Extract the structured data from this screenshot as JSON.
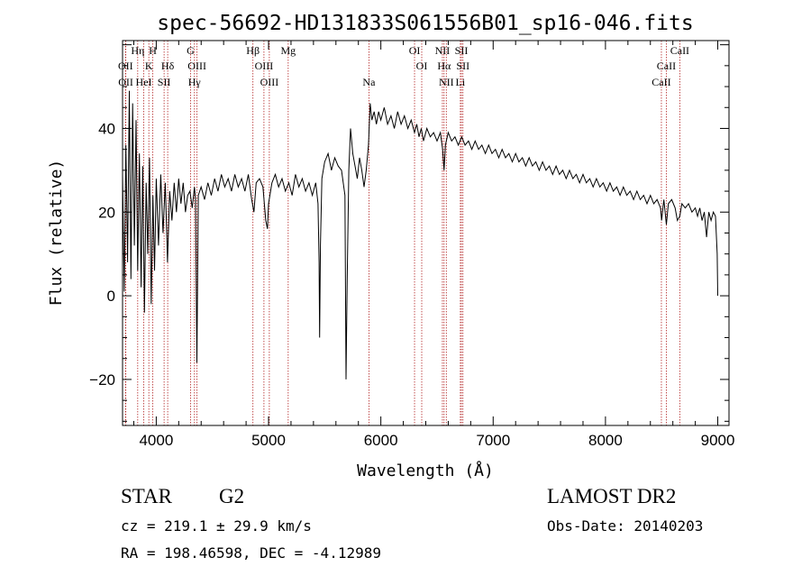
{
  "chart_data": {
    "type": "line",
    "title": "spec-56692-HD131833S061556B01_sp16-046.fits",
    "xlabel": "Wavelength (Å)",
    "ylabel": "Flux (relative)",
    "xlim": [
      3700,
      9100
    ],
    "ylim": [
      -31,
      61
    ],
    "xticks": [
      4000,
      5000,
      6000,
      7000,
      8000,
      9000
    ],
    "yticks": [
      -20,
      0,
      20,
      40
    ],
    "grid": false,
    "series": [
      {
        "values": [
          [
            3700,
            29
          ],
          [
            3715,
            1
          ],
          [
            3730,
            36
          ],
          [
            3745,
            8
          ],
          [
            3760,
            49
          ],
          [
            3775,
            4
          ],
          [
            3790,
            46
          ],
          [
            3805,
            12
          ],
          [
            3820,
            42
          ],
          [
            3835,
            6
          ],
          [
            3850,
            34
          ],
          [
            3865,
            2
          ],
          [
            3880,
            31
          ],
          [
            3895,
            -4
          ],
          [
            3910,
            27
          ],
          [
            3925,
            10
          ],
          [
            3940,
            33
          ],
          [
            3955,
            -2
          ],
          [
            3970,
            24
          ],
          [
            3985,
            6
          ],
          [
            4000,
            28
          ],
          [
            4020,
            12
          ],
          [
            4040,
            29
          ],
          [
            4060,
            15
          ],
          [
            4080,
            27
          ],
          [
            4100,
            8
          ],
          [
            4120,
            25
          ],
          [
            4140,
            18
          ],
          [
            4160,
            27
          ],
          [
            4180,
            20
          ],
          [
            4200,
            28
          ],
          [
            4220,
            22
          ],
          [
            4240,
            27
          ],
          [
            4260,
            20
          ],
          [
            4280,
            24
          ],
          [
            4300,
            25
          ],
          [
            4320,
            21
          ],
          [
            4340,
            26
          ],
          [
            4350,
            23
          ],
          [
            4362,
            -16
          ],
          [
            4375,
            24
          ],
          [
            4400,
            26
          ],
          [
            4430,
            23
          ],
          [
            4460,
            27
          ],
          [
            4490,
            24
          ],
          [
            4520,
            28
          ],
          [
            4550,
            25
          ],
          [
            4580,
            29
          ],
          [
            4610,
            26
          ],
          [
            4640,
            28
          ],
          [
            4670,
            25
          ],
          [
            4700,
            29
          ],
          [
            4730,
            26
          ],
          [
            4760,
            28
          ],
          [
            4790,
            25
          ],
          [
            4820,
            29
          ],
          [
            4850,
            23
          ],
          [
            4870,
            20
          ],
          [
            4890,
            27
          ],
          [
            4920,
            28
          ],
          [
            4950,
            26
          ],
          [
            4975,
            18
          ],
          [
            4990,
            16
          ],
          [
            5000,
            22
          ],
          [
            5030,
            27
          ],
          [
            5060,
            29
          ],
          [
            5090,
            26
          ],
          [
            5120,
            28
          ],
          [
            5150,
            25
          ],
          [
            5180,
            27
          ],
          [
            5210,
            24
          ],
          [
            5240,
            29
          ],
          [
            5270,
            26
          ],
          [
            5300,
            28
          ],
          [
            5330,
            25
          ],
          [
            5360,
            27
          ],
          [
            5390,
            24
          ],
          [
            5420,
            27
          ],
          [
            5440,
            22
          ],
          [
            5450,
            8
          ],
          [
            5455,
            -10
          ],
          [
            5462,
            12
          ],
          [
            5475,
            28
          ],
          [
            5500,
            32
          ],
          [
            5530,
            34
          ],
          [
            5560,
            30
          ],
          [
            5590,
            33
          ],
          [
            5620,
            31
          ],
          [
            5650,
            30
          ],
          [
            5680,
            24
          ],
          [
            5690,
            -20
          ],
          [
            5700,
            4
          ],
          [
            5715,
            30
          ],
          [
            5730,
            40
          ],
          [
            5750,
            34
          ],
          [
            5770,
            31
          ],
          [
            5790,
            28
          ],
          [
            5810,
            33
          ],
          [
            5830,
            30
          ],
          [
            5850,
            26
          ],
          [
            5870,
            30
          ],
          [
            5890,
            36
          ],
          [
            5905,
            46
          ],
          [
            5920,
            42
          ],
          [
            5940,
            44
          ],
          [
            5960,
            41
          ],
          [
            5980,
            44
          ],
          [
            6000,
            42
          ],
          [
            6030,
            45
          ],
          [
            6060,
            41
          ],
          [
            6090,
            43
          ],
          [
            6120,
            40
          ],
          [
            6150,
            44
          ],
          [
            6180,
            41
          ],
          [
            6210,
            43
          ],
          [
            6240,
            40
          ],
          [
            6270,
            42
          ],
          [
            6300,
            39
          ],
          [
            6320,
            41
          ],
          [
            6340,
            38
          ],
          [
            6360,
            40
          ],
          [
            6380,
            37
          ],
          [
            6410,
            40
          ],
          [
            6440,
            38
          ],
          [
            6470,
            39
          ],
          [
            6500,
            37
          ],
          [
            6530,
            39
          ],
          [
            6550,
            35
          ],
          [
            6563,
            30
          ],
          [
            6575,
            36
          ],
          [
            6600,
            39
          ],
          [
            6630,
            37
          ],
          [
            6660,
            38
          ],
          [
            6690,
            36
          ],
          [
            6720,
            38
          ],
          [
            6750,
            36
          ],
          [
            6780,
            37
          ],
          [
            6810,
            35
          ],
          [
            6840,
            37
          ],
          [
            6870,
            35
          ],
          [
            6900,
            36
          ],
          [
            6930,
            34
          ],
          [
            6960,
            36
          ],
          [
            6990,
            34
          ],
          [
            7020,
            35
          ],
          [
            7050,
            33
          ],
          [
            7080,
            35
          ],
          [
            7110,
            33
          ],
          [
            7140,
            34
          ],
          [
            7170,
            32
          ],
          [
            7200,
            34
          ],
          [
            7230,
            32
          ],
          [
            7260,
            33
          ],
          [
            7290,
            31
          ],
          [
            7320,
            33
          ],
          [
            7350,
            31
          ],
          [
            7380,
            32
          ],
          [
            7410,
            30
          ],
          [
            7440,
            32
          ],
          [
            7470,
            30
          ],
          [
            7500,
            31
          ],
          [
            7530,
            29
          ],
          [
            7560,
            31
          ],
          [
            7590,
            29
          ],
          [
            7620,
            30
          ],
          [
            7650,
            28
          ],
          [
            7680,
            30
          ],
          [
            7710,
            28
          ],
          [
            7740,
            29
          ],
          [
            7770,
            27
          ],
          [
            7800,
            29
          ],
          [
            7830,
            27
          ],
          [
            7860,
            28
          ],
          [
            7890,
            26
          ],
          [
            7920,
            28
          ],
          [
            7950,
            26
          ],
          [
            7980,
            27
          ],
          [
            8010,
            25
          ],
          [
            8040,
            27
          ],
          [
            8070,
            25
          ],
          [
            8100,
            26
          ],
          [
            8130,
            24
          ],
          [
            8160,
            26
          ],
          [
            8190,
            24
          ],
          [
            8220,
            25
          ],
          [
            8250,
            23
          ],
          [
            8280,
            25
          ],
          [
            8310,
            23
          ],
          [
            8340,
            24
          ],
          [
            8370,
            22
          ],
          [
            8400,
            24
          ],
          [
            8430,
            22
          ],
          [
            8460,
            23
          ],
          [
            8490,
            21
          ],
          [
            8500,
            18
          ],
          [
            8520,
            23
          ],
          [
            8542,
            17
          ],
          [
            8560,
            22
          ],
          [
            8590,
            23
          ],
          [
            8620,
            21
          ],
          [
            8640,
            18
          ],
          [
            8662,
            19
          ],
          [
            8680,
            22
          ],
          [
            8710,
            21
          ],
          [
            8740,
            22
          ],
          [
            8770,
            20
          ],
          [
            8800,
            21
          ],
          [
            8820,
            19
          ],
          [
            8840,
            21
          ],
          [
            8860,
            18
          ],
          [
            8880,
            20
          ],
          [
            8900,
            14
          ],
          [
            8920,
            20
          ],
          [
            8940,
            18
          ],
          [
            8960,
            20
          ],
          [
            8980,
            19
          ],
          [
            8995,
            10
          ],
          [
            9000,
            0
          ]
        ]
      }
    ],
    "spectral_lines": [
      {
        "label": "OII",
        "wavelength": 3727,
        "row": 3
      },
      {
        "label": "OII",
        "wavelength": 3729,
        "row": 4
      },
      {
        "label": "Hη",
        "wavelength": 3835,
        "row": 2
      },
      {
        "label": "K",
        "wavelength": 3934,
        "row": 3
      },
      {
        "label": "H",
        "wavelength": 3969,
        "row": 2
      },
      {
        "label": "HeI",
        "wavelength": 3889,
        "row": 4
      },
      {
        "label": "SII",
        "wavelength": 4070,
        "row": 4
      },
      {
        "label": "Hδ",
        "wavelength": 4102,
        "row": 3
      },
      {
        "label": "G",
        "wavelength": 4305,
        "row": 2
      },
      {
        "label": "OIII",
        "wavelength": 4363,
        "row": 3
      },
      {
        "label": "Hγ",
        "wavelength": 4340,
        "row": 4
      },
      {
        "label": "Hβ",
        "wavelength": 4861,
        "row": 2
      },
      {
        "label": "OIII",
        "wavelength": 4959,
        "row": 3
      },
      {
        "label": "OIII",
        "wavelength": 5007,
        "row": 4
      },
      {
        "label": "Mg",
        "wavelength": 5175,
        "row": 2
      },
      {
        "label": "Na",
        "wavelength": 5894,
        "row": 4
      },
      {
        "label": "OI",
        "wavelength": 6300,
        "row": 2
      },
      {
        "label": "OI",
        "wavelength": 6364,
        "row": 3
      },
      {
        "label": "NII",
        "wavelength": 6548,
        "row": 2
      },
      {
        "label": "Hα",
        "wavelength": 6563,
        "row": 3
      },
      {
        "label": "NII",
        "wavelength": 6583,
        "row": 4
      },
      {
        "label": "SII",
        "wavelength": 6717,
        "row": 2
      },
      {
        "label": "SII",
        "wavelength": 6731,
        "row": 3
      },
      {
        "label": "Li",
        "wavelength": 6708,
        "row": 4
      },
      {
        "label": "CaII",
        "wavelength": 8498,
        "row": 4
      },
      {
        "label": "CaII",
        "wavelength": 8542,
        "row": 3
      },
      {
        "label": "CaII",
        "wavelength": 8662,
        "row": 2
      }
    ]
  },
  "info": {
    "object_class": "STAR",
    "subclass": "G2",
    "survey": "LAMOST DR2",
    "cz": "cz = 219.1 ± 29.9 km/s",
    "obs_date": "Obs-Date: 20140203",
    "coords": "RA = 198.46598, DEC =  -4.12989"
  },
  "colors": {
    "spectrum": "#000000",
    "line_markers": "#b22222"
  }
}
